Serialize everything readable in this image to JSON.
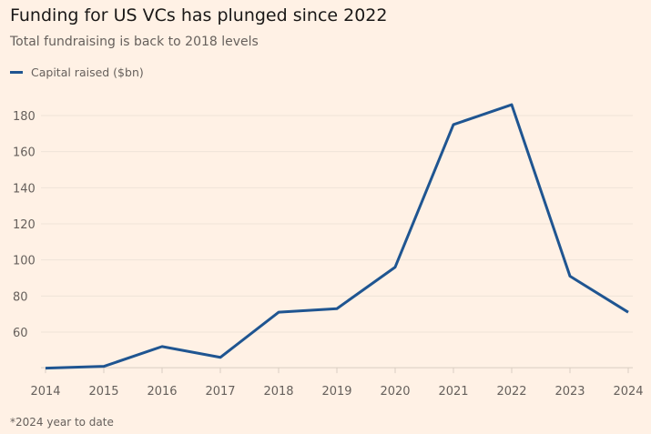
{
  "title": "Funding for US VCs has plunged since 2022",
  "subtitle": "Total fundraising is back to 2018 levels",
  "note": "*2024 year to date",
  "colors": {
    "line": "#1f5591",
    "background": "#FFF1E5",
    "grid": "#efe3d8"
  },
  "chart_data": {
    "type": "line",
    "title": "Funding for US VCs has plunged since 2022",
    "subtitle": "Total fundraising is back to 2018 levels",
    "xlabel": "",
    "ylabel": "",
    "x": [
      "2014",
      "2015",
      "2016",
      "2017",
      "2018",
      "2019",
      "2020",
      "2021",
      "2022",
      "2023",
      "2024"
    ],
    "series": [
      {
        "name": "Capital raised ($bn)",
        "values": [
          40,
          41,
          52,
          46,
          71,
          73,
          96,
          175,
          186,
          91,
          71
        ]
      }
    ],
    "yticks": [
      60,
      80,
      100,
      120,
      140,
      160,
      180
    ],
    "ylim": [
      40,
      190
    ],
    "grid": true,
    "legend": "top-left",
    "annotations": [
      "*2024 year to date"
    ]
  }
}
